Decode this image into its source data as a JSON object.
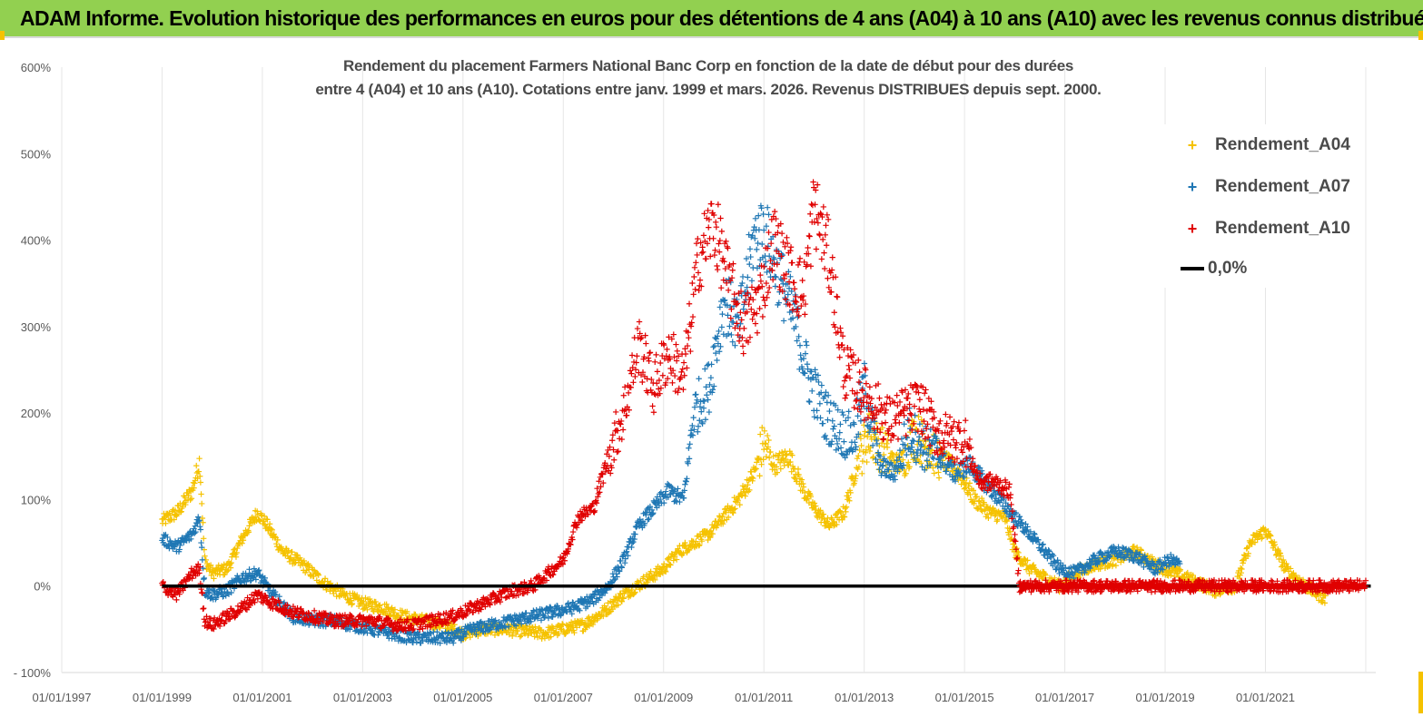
{
  "header": {
    "title": "ADAM Informe. Evolution historique des performances en euros pour des détentions de 4 ans (A04) à 10 ans (A10) avec les revenus connus distribués"
  },
  "chart_data": {
    "type": "scatter",
    "title_line1": "Rendement du placement Farmers National Banc Corp en fonction de la date de début pour des durées",
    "title_line2": "entre 4 (A04) et 10 ans (A10). Cotations entre janv. 1999 et mars. 2026. Revenus DISTRIBUES depuis sept. 2000.",
    "xlabel": "",
    "ylabel": "",
    "xlim": [
      1997.0,
      2023.2
    ],
    "ylim": [
      -100,
      600
    ],
    "yticks": [
      -100,
      0,
      100,
      200,
      300,
      400,
      500,
      600
    ],
    "ytick_labels": [
      "- 100%",
      "0%",
      "100%",
      "200%",
      "300%",
      "400%",
      "500%",
      "600%"
    ],
    "xticks": [
      1997,
      1999,
      2001,
      2003,
      2005,
      2007,
      2009,
      2011,
      2013,
      2015,
      2017,
      2019,
      2021
    ],
    "xtick_labels": [
      "01/01/1997",
      "01/01/1999",
      "01/01/2001",
      "01/01/2003",
      "01/01/2005",
      "01/01/2007",
      "01/01/2009",
      "01/01/2011",
      "01/01/2013",
      "01/01/2015",
      "01/01/2017",
      "01/01/2019",
      "01/01/2021"
    ],
    "legend_position": "top-right",
    "series": [
      {
        "name": "Rendement_A04",
        "color": "#f5c200",
        "marker": "+",
        "x": [
          1999.0,
          1999.3,
          1999.6,
          1999.75,
          1999.85,
          2000.0,
          2000.3,
          2000.6,
          2000.9,
          2001.1,
          2001.4,
          2001.8,
          2002.2,
          2002.6,
          2003.0,
          2003.4,
          2003.8,
          2004.2,
          2004.6,
          2005.0,
          2005.4,
          2005.8,
          2006.2,
          2006.6,
          2007.0,
          2007.4,
          2007.8,
          2008.2,
          2008.6,
          2009.0,
          2009.3,
          2009.6,
          2009.9,
          2010.2,
          2010.5,
          2010.8,
          2011.0,
          2011.2,
          2011.5,
          2011.8,
          2012.0,
          2012.3,
          2012.6,
          2012.9,
          2013.1,
          2013.4,
          2013.7,
          2014.0,
          2014.3,
          2014.6,
          2014.9,
          2015.2,
          2015.5,
          2015.8,
          2016.0,
          2016.3,
          2016.6,
          2016.9,
          2017.2,
          2017.6,
          2018.0,
          2018.4,
          2018.8,
          2019.2,
          2019.6,
          2020.0,
          2020.4,
          2020.7,
          2021.0,
          2021.4,
          2021.8,
          2022.2
        ],
        "y": [
          75,
          85,
          110,
          145,
          30,
          15,
          20,
          55,
          85,
          70,
          40,
          25,
          5,
          -10,
          -20,
          -25,
          -35,
          -40,
          -45,
          -55,
          -50,
          -50,
          -52,
          -55,
          -50,
          -45,
          -30,
          -10,
          5,
          20,
          40,
          50,
          60,
          80,
          100,
          130,
          165,
          140,
          150,
          110,
          90,
          70,
          85,
          150,
          175,
          155,
          140,
          175,
          160,
          145,
          130,
          100,
          85,
          80,
          40,
          20,
          10,
          0,
          15,
          25,
          30,
          40,
          25,
          15,
          5,
          -5,
          0,
          50,
          65,
          20,
          0,
          -15
        ]
      },
      {
        "name": "Rendement_A07",
        "color": "#1f77b4",
        "marker": "+",
        "x": [
          1999.0,
          1999.3,
          1999.6,
          1999.75,
          1999.85,
          2000.0,
          2000.3,
          2000.6,
          2000.9,
          2001.2,
          2001.6,
          2002.0,
          2002.4,
          2002.8,
          2003.2,
          2003.6,
          2004.0,
          2004.4,
          2004.8,
          2005.2,
          2005.6,
          2006.0,
          2006.4,
          2006.8,
          2007.2,
          2007.6,
          2007.9,
          2008.2,
          2008.5,
          2008.8,
          2009.1,
          2009.4,
          2009.6,
          2009.9,
          2010.2,
          2010.5,
          2010.8,
          2011.0,
          2011.3,
          2011.6,
          2011.9,
          2012.2,
          2012.5,
          2012.8,
          2013.0,
          2013.3,
          2013.6,
          2013.9,
          2014.2,
          2014.5,
          2014.8,
          2015.1,
          2015.4,
          2015.7,
          2016.0,
          2016.3,
          2016.6,
          2016.9,
          2017.2,
          2017.6,
          2018.0,
          2018.4,
          2018.8,
          2019.1,
          2019.3
        ],
        "y": [
          55,
          45,
          60,
          80,
          -5,
          -10,
          -5,
          10,
          15,
          -10,
          -35,
          -40,
          -40,
          -45,
          -50,
          -55,
          -60,
          -60,
          -60,
          -50,
          -45,
          -40,
          -35,
          -30,
          -25,
          -15,
          0,
          30,
          70,
          90,
          110,
          100,
          200,
          230,
          330,
          300,
          400,
          410,
          360,
          310,
          240,
          200,
          180,
          170,
          230,
          140,
          130,
          180,
          160,
          150,
          130,
          140,
          120,
          100,
          80,
          60,
          40,
          20,
          15,
          30,
          40,
          35,
          20,
          30,
          25
        ]
      },
      {
        "name": "Rendement_A10",
        "color": "#e00000",
        "marker": "+",
        "x": [
          1999.0,
          1999.3,
          1999.6,
          1999.75,
          1999.85,
          2000.0,
          2000.3,
          2000.6,
          2000.9,
          2001.2,
          2001.6,
          2002.0,
          2002.4,
          2002.8,
          2003.2,
          2003.6,
          2004.0,
          2004.4,
          2004.8,
          2005.2,
          2005.6,
          2006.0,
          2006.4,
          2006.8,
          2007.0,
          2007.3,
          2007.6,
          2007.9,
          2008.2,
          2008.5,
          2008.8,
          2009.1,
          2009.4,
          2009.7,
          2010.0,
          2010.3,
          2010.6,
          2010.9,
          2011.2,
          2011.5,
          2011.8,
          2012.0,
          2012.3,
          2012.6,
          2012.9,
          2013.2,
          2013.5,
          2013.8,
          2014.1,
          2014.4,
          2014.7,
          2015.0,
          2015.3,
          2015.6,
          2015.9,
          2016.1,
          2016.5,
          2017.0,
          2017.5,
          2018.0,
          2018.5,
          2019.0,
          2019.5,
          2020.0,
          2020.5,
          2021.0,
          2021.5,
          2022.0,
          2022.5,
          2023.0
        ],
        "y": [
          0,
          -10,
          15,
          20,
          -40,
          -45,
          -35,
          -25,
          -10,
          -20,
          -30,
          -35,
          -40,
          -40,
          -40,
          -45,
          -45,
          -40,
          -35,
          -25,
          -15,
          -5,
          0,
          20,
          30,
          80,
          90,
          150,
          200,
          280,
          230,
          270,
          240,
          380,
          420,
          350,
          300,
          330,
          400,
          360,
          340,
          440,
          380,
          250,
          230,
          210,
          190,
          200,
          210,
          180,
          170,
          170,
          120,
          120,
          110,
          0,
          0,
          0,
          0,
          0,
          0,
          0,
          0,
          0,
          0,
          0,
          0,
          0,
          0,
          0
        ]
      },
      {
        "name": "0,0%",
        "color": "#000000",
        "marker": "line",
        "x": [
          1999.0,
          2023.1
        ],
        "y": [
          0,
          0
        ]
      }
    ]
  }
}
